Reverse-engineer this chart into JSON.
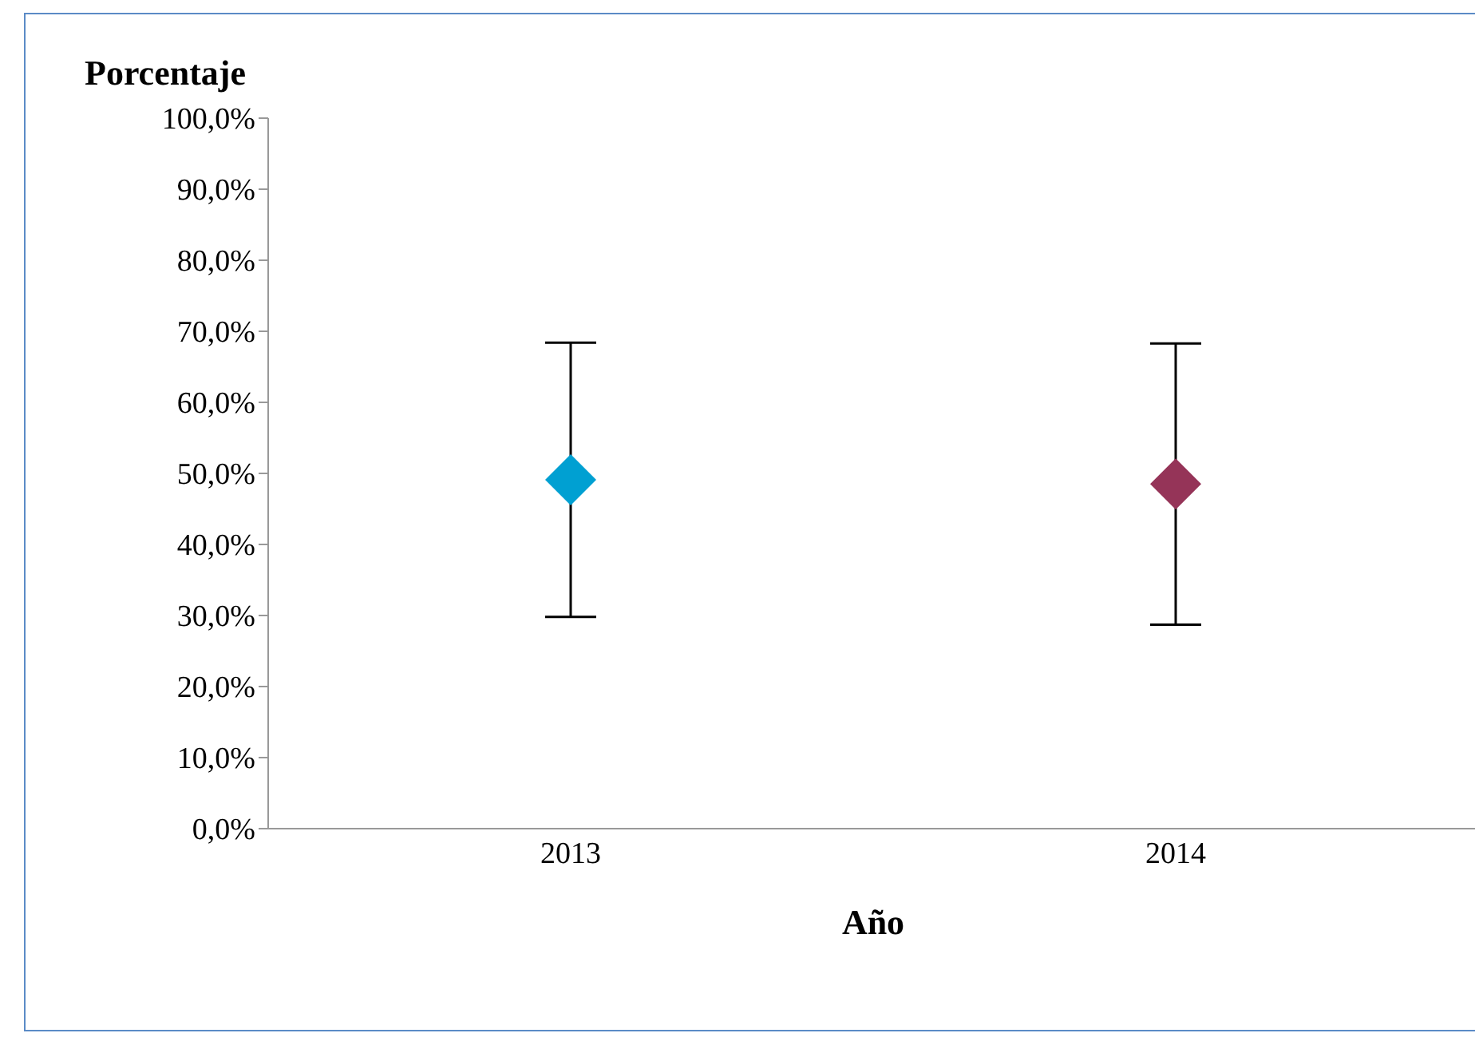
{
  "chart_data": {
    "type": "scatter",
    "ylabel": "Porcentaje",
    "xlabel": "Año",
    "categories": [
      "2013",
      "2014"
    ],
    "values": [
      49.1,
      48.5
    ],
    "colors": [
      "#00a0d2",
      "#953458"
    ],
    "errors": [
      19.3,
      19.8
    ],
    "ylim": [
      0,
      100
    ],
    "yticks": [
      {
        "value": 0,
        "label": "0,0%"
      },
      {
        "value": 10,
        "label": "10,0%"
      },
      {
        "value": 20,
        "label": "20,0%"
      },
      {
        "value": 30,
        "label": "30,0%"
      },
      {
        "value": 40,
        "label": "40,0%"
      },
      {
        "value": 50,
        "label": "50,0%"
      },
      {
        "value": 60,
        "label": "60,0%"
      },
      {
        "value": 70,
        "label": "70,0%"
      },
      {
        "value": 80,
        "label": "80,0%"
      },
      {
        "value": 90,
        "label": "90,0%"
      },
      {
        "value": 100,
        "label": "100,0%"
      }
    ],
    "marker": "diamond",
    "grid": false,
    "legend": false
  }
}
